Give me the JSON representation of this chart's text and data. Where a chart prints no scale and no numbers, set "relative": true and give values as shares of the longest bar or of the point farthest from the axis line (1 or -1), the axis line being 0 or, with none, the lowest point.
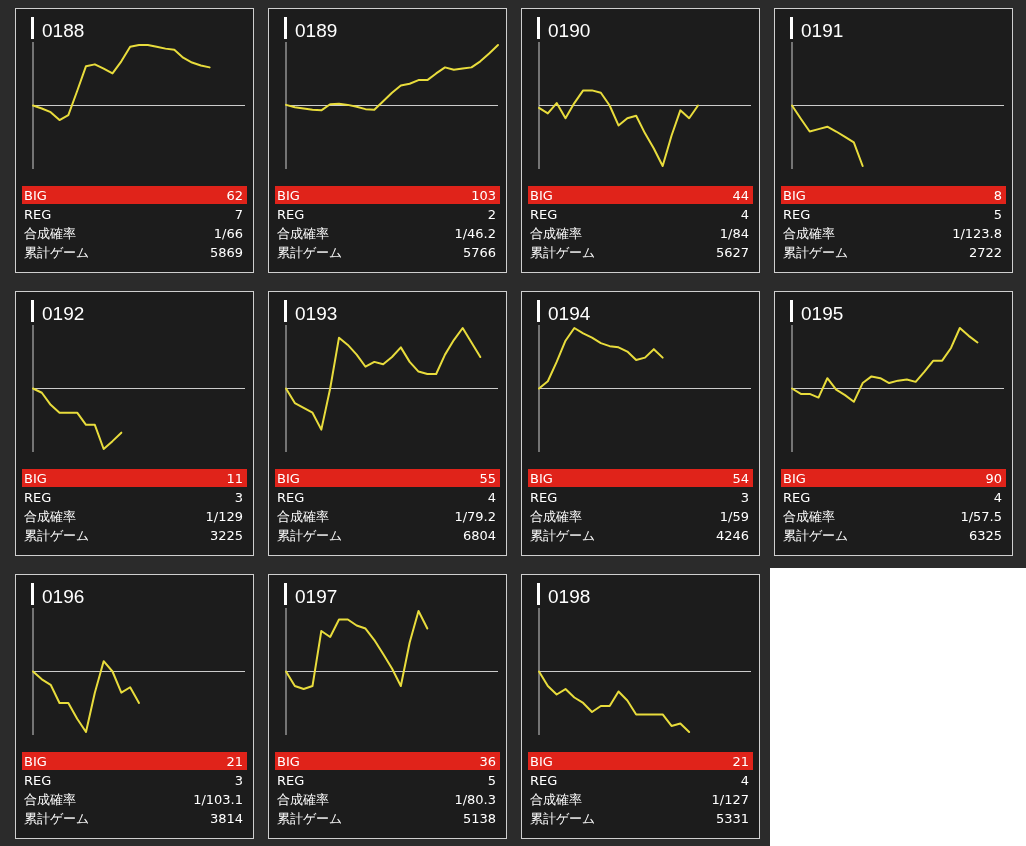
{
  "chart_data": [
    {
      "type": "line",
      "title": "0188",
      "relative": true,
      "categories": [
        null,
        null,
        null,
        null,
        null,
        null,
        null,
        null,
        null,
        null,
        null,
        null,
        null,
        null,
        null,
        null,
        null,
        null,
        null,
        null,
        null,
        null,
        null,
        null,
        null
      ],
      "series": [
        {
          "color": "#e8dc3c",
          "values": [
            0,
            -0.05,
            -0.11,
            -0.24,
            -0.16,
            0.24,
            0.65,
            0.68,
            0.61,
            0.53,
            0.73,
            0.97,
            1,
            1,
            0.97,
            0.94,
            0.92,
            0.79,
            0.71,
            0.66,
            0.63,
            null,
            null,
            null,
            null
          ]
        }
      ],
      "annotations": [
        "BIG",
        "62",
        "REG",
        "7",
        "合成確率",
        "1/66",
        "累計ゲーム",
        "5869"
      ]
    },
    {
      "type": "line",
      "title": "0189",
      "relative": true,
      "categories": [
        null,
        null,
        null,
        null,
        null,
        null,
        null,
        null,
        null,
        null,
        null,
        null,
        null,
        null,
        null,
        null,
        null,
        null,
        null,
        null,
        null,
        null,
        null,
        null,
        null
      ],
      "series": [
        {
          "color": "#e8dc3c",
          "values": [
            0.01,
            -0.03,
            -0.05,
            -0.07,
            -0.08,
            0.02,
            0.03,
            0.01,
            -0.02,
            -0.06,
            -0.07,
            0.07,
            0.21,
            0.33,
            0.36,
            0.42,
            0.42,
            0.53,
            0.63,
            0.59,
            0.61,
            0.63,
            0.73,
            0.86,
            1
          ]
        }
      ],
      "annotations": [
        "BIG",
        "103",
        "REG",
        "2",
        "合成確率",
        "1/46.2",
        "累計ゲーム",
        "5766"
      ]
    },
    {
      "type": "line",
      "title": "0190",
      "relative": true,
      "categories": [
        null,
        null,
        null,
        null,
        null,
        null,
        null,
        null,
        null,
        null,
        null,
        null,
        null,
        null,
        null,
        null,
        null,
        null,
        null,
        null,
        null,
        null,
        null,
        null,
        null
      ],
      "series": [
        {
          "color": "#e8dc3c",
          "values": [
            -0.04,
            -0.13,
            0.04,
            -0.21,
            0.04,
            0.25,
            0.25,
            0.21,
            0,
            -0.33,
            -0.21,
            -0.17,
            -0.46,
            -0.71,
            -1,
            -0.5,
            -0.08,
            -0.21,
            0,
            null,
            null,
            null,
            null,
            null,
            null
          ]
        }
      ],
      "annotations": [
        "BIG",
        "44",
        "REG",
        "4",
        "合成確率",
        "1/84",
        "累計ゲーム",
        "5627"
      ]
    },
    {
      "type": "line",
      "title": "0191",
      "relative": true,
      "categories": [
        null,
        null,
        null,
        null,
        null,
        null,
        null,
        null,
        null,
        null,
        null,
        null,
        null,
        null,
        null,
        null,
        null,
        null,
        null,
        null,
        null,
        null,
        null,
        null,
        null
      ],
      "series": [
        {
          "color": "#e8dc3c",
          "values": [
            0,
            -0.22,
            -0.43,
            -0.39,
            -0.35,
            -0.43,
            -0.52,
            -0.61,
            -1,
            null,
            null,
            null,
            null,
            null,
            null,
            null,
            null,
            null,
            null,
            null,
            null,
            null,
            null,
            null,
            null
          ]
        }
      ],
      "annotations": [
        "BIG",
        "8",
        "REG",
        "5",
        "合成確率",
        "1/123.8",
        "累計ゲーム",
        "2722"
      ]
    },
    {
      "type": "line",
      "title": "0192",
      "relative": true,
      "categories": [
        null,
        null,
        null,
        null,
        null,
        null,
        null,
        null,
        null,
        null,
        null,
        null,
        null,
        null,
        null,
        null,
        null,
        null,
        null,
        null,
        null,
        null,
        null,
        null,
        null
      ],
      "series": [
        {
          "color": "#e8dc3c",
          "values": [
            0,
            -0.07,
            -0.27,
            -0.4,
            -0.4,
            -0.4,
            -0.6,
            -0.6,
            -1,
            -0.87,
            -0.73,
            null,
            null,
            null,
            null,
            null,
            null,
            null,
            null,
            null,
            null,
            null,
            null,
            null,
            null
          ]
        }
      ],
      "annotations": [
        "BIG",
        "11",
        "REG",
        "3",
        "合成確率",
        "1/129",
        "累計ゲーム",
        "3225"
      ]
    },
    {
      "type": "line",
      "title": "0193",
      "relative": true,
      "categories": [
        null,
        null,
        null,
        null,
        null,
        null,
        null,
        null,
        null,
        null,
        null,
        null,
        null,
        null,
        null,
        null,
        null,
        null,
        null,
        null,
        null,
        null,
        null,
        null,
        null
      ],
      "series": [
        {
          "color": "#e8dc3c",
          "values": [
            0,
            -0.24,
            -0.32,
            -0.4,
            -0.68,
            0,
            0.84,
            0.72,
            0.56,
            0.36,
            0.44,
            0.4,
            0.52,
            0.68,
            0.44,
            0.28,
            0.24,
            0.24,
            0.56,
            0.8,
            1,
            0.76,
            0.52,
            null,
            null
          ]
        }
      ],
      "annotations": [
        "BIG",
        "55",
        "REG",
        "4",
        "合成確率",
        "1/79.2",
        "累計ゲーム",
        "6804"
      ]
    },
    {
      "type": "line",
      "title": "0194",
      "relative": true,
      "categories": [
        null,
        null,
        null,
        null,
        null,
        null,
        null,
        null,
        null,
        null,
        null,
        null,
        null,
        null,
        null,
        null,
        null,
        null,
        null,
        null,
        null,
        null,
        null,
        null,
        null
      ],
      "series": [
        {
          "color": "#e8dc3c",
          "values": [
            0,
            0.12,
            0.44,
            0.79,
            1,
            0.91,
            0.84,
            0.75,
            0.7,
            0.68,
            0.61,
            0.47,
            0.51,
            0.65,
            0.51,
            null,
            null,
            null,
            null,
            null,
            null,
            null,
            null,
            null,
            null
          ]
        }
      ],
      "annotations": [
        "BIG",
        "54",
        "REG",
        "3",
        "合成確率",
        "1/59",
        "累計ゲーム",
        "4246"
      ]
    },
    {
      "type": "line",
      "title": "0195",
      "relative": true,
      "categories": [
        null,
        null,
        null,
        null,
        null,
        null,
        null,
        null,
        null,
        null,
        null,
        null,
        null,
        null,
        null,
        null,
        null,
        null,
        null,
        null,
        null,
        null,
        null,
        null,
        null
      ],
      "series": [
        {
          "color": "#e8dc3c",
          "values": [
            0,
            -0.09,
            -0.09,
            -0.15,
            0.17,
            -0.02,
            -0.11,
            -0.22,
            0.09,
            0.2,
            0.17,
            0.09,
            0.13,
            0.15,
            0.11,
            0.28,
            0.46,
            0.46,
            0.67,
            1,
            0.87,
            0.76,
            null,
            null,
            null
          ]
        }
      ],
      "annotations": [
        "BIG",
        "90",
        "REG",
        "4",
        "合成確率",
        "1/57.5",
        "累計ゲーム",
        "6325"
      ]
    },
    {
      "type": "line",
      "title": "0196",
      "relative": true,
      "categories": [
        null,
        null,
        null,
        null,
        null,
        null,
        null,
        null,
        null,
        null,
        null,
        null,
        null,
        null,
        null,
        null,
        null,
        null,
        null,
        null,
        null,
        null,
        null,
        null,
        null
      ],
      "series": [
        {
          "color": "#e8dc3c",
          "values": [
            0,
            -0.13,
            -0.22,
            -0.52,
            -0.52,
            -0.78,
            -1,
            -0.35,
            0.17,
            0,
            -0.35,
            -0.26,
            -0.52,
            null,
            null,
            null,
            null,
            null,
            null,
            null,
            null,
            null,
            null,
            null,
            null
          ]
        }
      ],
      "annotations": [
        "BIG",
        "21",
        "REG",
        "3",
        "合成確率",
        "1/103.1",
        "累計ゲーム",
        "3814"
      ]
    },
    {
      "type": "line",
      "title": "0197",
      "relative": true,
      "categories": [
        null,
        null,
        null,
        null,
        null,
        null,
        null,
        null,
        null,
        null,
        null,
        null,
        null,
        null,
        null,
        null,
        null,
        null,
        null,
        null,
        null,
        null,
        null,
        null,
        null
      ],
      "series": [
        {
          "color": "#e8dc3c",
          "values": [
            0,
            -0.24,
            -0.29,
            -0.24,
            0.67,
            0.57,
            0.86,
            0.86,
            0.76,
            0.71,
            0.52,
            0.29,
            0.05,
            -0.24,
            0.48,
            1,
            0.71,
            null,
            null,
            null,
            null,
            null,
            null,
            null,
            null
          ]
        }
      ],
      "annotations": [
        "BIG",
        "36",
        "REG",
        "5",
        "合成確率",
        "1/80.3",
        "累計ゲーム",
        "5138"
      ]
    },
    {
      "type": "line",
      "title": "0198",
      "relative": true,
      "categories": [
        null,
        null,
        null,
        null,
        null,
        null,
        null,
        null,
        null,
        null,
        null,
        null,
        null,
        null,
        null,
        null,
        null,
        null,
        null,
        null,
        null,
        null,
        null,
        null,
        null
      ],
      "series": [
        {
          "color": "#e8dc3c",
          "values": [
            0,
            -0.24,
            -0.38,
            -0.29,
            -0.43,
            -0.52,
            -0.67,
            -0.57,
            -0.57,
            -0.33,
            -0.48,
            -0.71,
            -0.71,
            -0.71,
            -0.71,
            -0.9,
            -0.86,
            -1,
            null,
            null,
            null,
            null,
            null,
            null,
            null
          ]
        }
      ],
      "annotations": [
        "BIG",
        "21",
        "REG",
        "4",
        "合成確率",
        "1/127",
        "累計ゲーム",
        "5331"
      ]
    }
  ]
}
